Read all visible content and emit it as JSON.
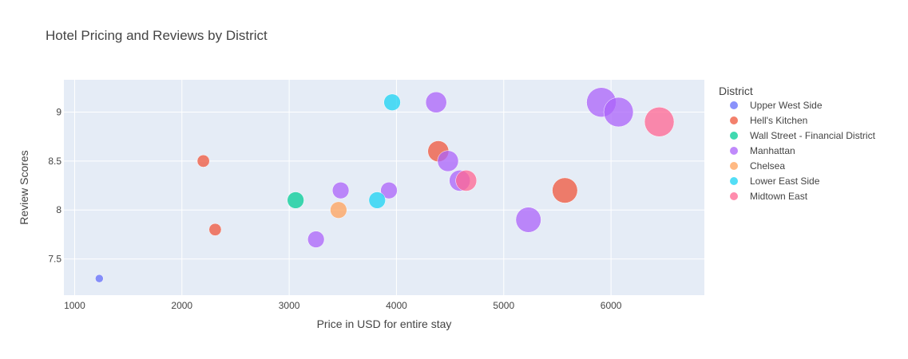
{
  "chart_data": {
    "type": "scatter",
    "title": "Hotel Pricing and Reviews by District",
    "xlabel": "Price in USD for entire stay",
    "ylabel": "Review Scores",
    "xlim": [
      900,
      6870
    ],
    "ylim": [
      7.13,
      9.33
    ],
    "xticks": [
      1000,
      2000,
      3000,
      4000,
      5000,
      6000
    ],
    "yticks": [
      7.5,
      8,
      8.5,
      9
    ],
    "grid": true,
    "legend_title": "District",
    "legend_position": "right",
    "series": [
      {
        "name": "Upper West Side",
        "color": "#636efa",
        "points": [
          {
            "x": 1230,
            "y": 7.3,
            "size": 1
          }
        ]
      },
      {
        "name": "Hell's Kitchen",
        "color": "#ef553b",
        "points": [
          {
            "x": 2200,
            "y": 8.5,
            "size": 2
          },
          {
            "x": 2310,
            "y": 7.8,
            "size": 2
          },
          {
            "x": 4390,
            "y": 8.6,
            "size": 4
          },
          {
            "x": 5570,
            "y": 8.2,
            "size": 5
          }
        ]
      },
      {
        "name": "Wall Street - Financial District",
        "color": "#00cc96",
        "points": [
          {
            "x": 3060,
            "y": 8.1,
            "size": 3
          }
        ]
      },
      {
        "name": "Manhattan",
        "color": "#ab63fa",
        "points": [
          {
            "x": 3250,
            "y": 7.7,
            "size": 3
          },
          {
            "x": 3480,
            "y": 8.2,
            "size": 3
          },
          {
            "x": 3930,
            "y": 8.2,
            "size": 3
          },
          {
            "x": 4370,
            "y": 9.1,
            "size": 4
          },
          {
            "x": 4480,
            "y": 8.5,
            "size": 4
          },
          {
            "x": 4590,
            "y": 8.3,
            "size": 4
          },
          {
            "x": 5230,
            "y": 7.9,
            "size": 5
          },
          {
            "x": 5910,
            "y": 9.1,
            "size": 6
          },
          {
            "x": 6070,
            "y": 9.0,
            "size": 6
          }
        ]
      },
      {
        "name": "Chelsea",
        "color": "#ffa15a",
        "points": [
          {
            "x": 3460,
            "y": 8.0,
            "size": 3
          }
        ]
      },
      {
        "name": "Lower East Side",
        "color": "#19d3f3",
        "points": [
          {
            "x": 3820,
            "y": 8.1,
            "size": 3
          },
          {
            "x": 3960,
            "y": 9.1,
            "size": 3
          }
        ]
      },
      {
        "name": "Midtown East",
        "color": "#ff6692",
        "points": [
          {
            "x": 4650,
            "y": 8.3,
            "size": 4
          },
          {
            "x": 6450,
            "y": 8.9,
            "size": 6
          }
        ]
      }
    ]
  }
}
